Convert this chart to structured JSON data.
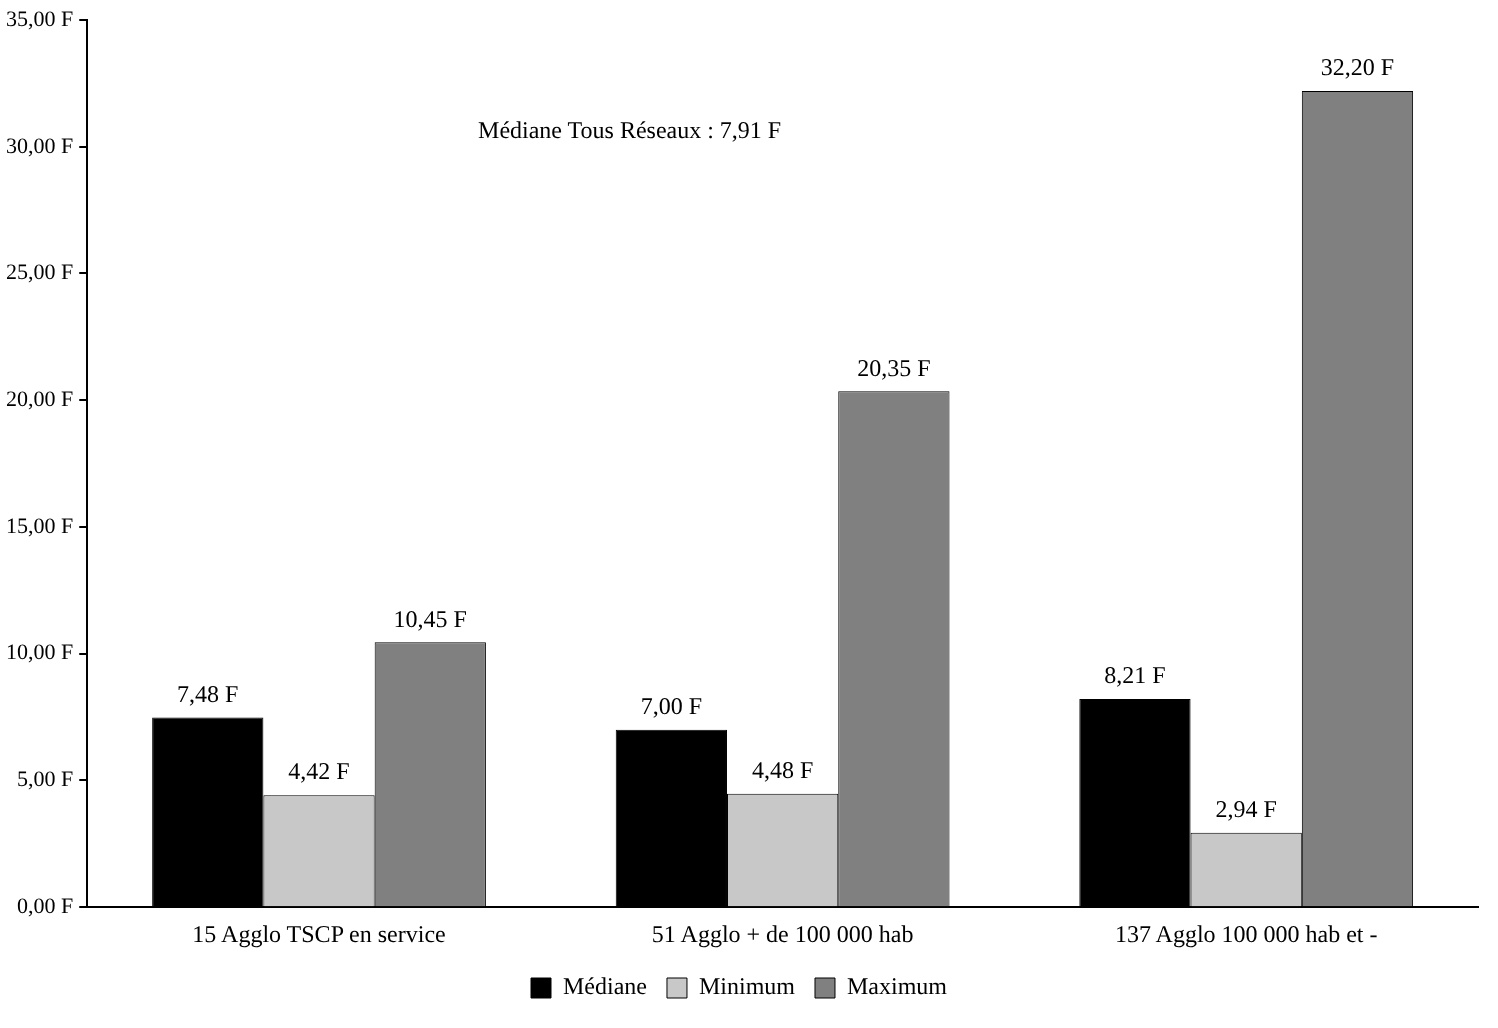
{
  "chart_data": {
    "type": "bar",
    "categories": [
      "15 Agglo TSCP en service",
      "51 Agglo + de 100 000 hab",
      "137 Agglo 100 000 hab et -"
    ],
    "series": [
      {
        "name": "Médiane",
        "color": "#000000",
        "values": [
          7.48,
          7.0,
          8.21
        ],
        "value_labels": [
          "7,48 F",
          "7,00 F",
          "8,21 F"
        ]
      },
      {
        "name": "Minimum",
        "color": "#c8c8c8",
        "values": [
          4.42,
          4.48,
          2.94
        ],
        "value_labels": [
          "4,42 F",
          "4,48 F",
          "2,94 F"
        ]
      },
      {
        "name": "Maximum",
        "color": "#808080",
        "values": [
          10.45,
          20.35,
          32.2
        ],
        "value_labels": [
          "10,45 F",
          "20,35 F",
          "32,20 F"
        ]
      }
    ],
    "ylim": [
      0,
      35
    ],
    "yticks": [
      {
        "value": 0,
        "label": "0,00 F"
      },
      {
        "value": 5,
        "label": "5,00 F"
      },
      {
        "value": 10,
        "label": "10,00 F"
      },
      {
        "value": 15,
        "label": "15,00 F"
      },
      {
        "value": 20,
        "label": "20,00 F"
      },
      {
        "value": 25,
        "label": "25,00 F"
      },
      {
        "value": 30,
        "label": "30,00 F"
      },
      {
        "value": 35,
        "label": "35,00 F"
      }
    ],
    "annotations": [
      "Médiane Tous Réseaux : 7,91 F"
    ],
    "grid": false,
    "legend": "bottom"
  }
}
